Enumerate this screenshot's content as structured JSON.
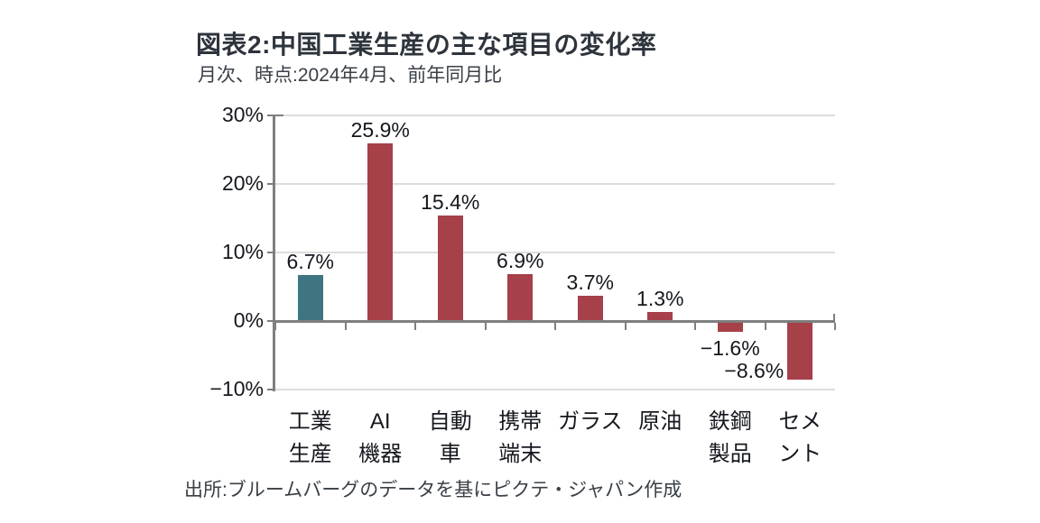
{
  "header": {
    "title": "図表2:中国工業生産の主な項目の変化率",
    "subtitle": "月次、時点:2024年4月、前年同月比"
  },
  "footer": {
    "source": "出所:ブルームバーグのデータを基にピクテ・ジャパン作成"
  },
  "chart_data": {
    "type": "bar",
    "title": "図表2:中国工業生産の主な項目の変化率",
    "subtitle": "月次、時点:2024年4月、前年同月比",
    "source": "出所:ブルームバーグのデータを基にピクテ・ジャパン作成",
    "categories": [
      "工業生産",
      "AI機器",
      "自動車",
      "携帯端末",
      "ガラス",
      "原油",
      "鉄鋼製品",
      "セメント"
    ],
    "categories_wrapped": [
      [
        "工業",
        "生産"
      ],
      [
        "AI",
        "機器"
      ],
      [
        "自動",
        "車"
      ],
      [
        "携帯",
        "端末"
      ],
      [
        "ガラス"
      ],
      [
        "原油"
      ],
      [
        "鉄鋼",
        "製品"
      ],
      [
        "セメ",
        "ント"
      ]
    ],
    "values": [
      6.7,
      25.9,
      15.4,
      6.9,
      3.7,
      1.3,
      -1.6,
      -8.6
    ],
    "data_labels": [
      "6.7%",
      "25.9%",
      "15.4%",
      "6.9%",
      "3.7%",
      "1.3%",
      "−1.6%",
      "−8.6%"
    ],
    "unit": "%",
    "ylim": [
      -10,
      30
    ],
    "ytick_step": 10,
    "ytick_labels": [
      "30%",
      "20%",
      "10%",
      "0%",
      "−10%"
    ],
    "grid": true,
    "legend": false,
    "xlabel": "",
    "ylabel": "",
    "bar_colors": [
      "#3E7580",
      "#A64049",
      "#A64049",
      "#A64049",
      "#A64049",
      "#A64049",
      "#A64049",
      "#A64049"
    ],
    "colors": {
      "highlight": "#3E7580",
      "series": "#A64049",
      "axis": "#808080",
      "gridline": "#DDDDDD",
      "text": "#15181E"
    }
  }
}
